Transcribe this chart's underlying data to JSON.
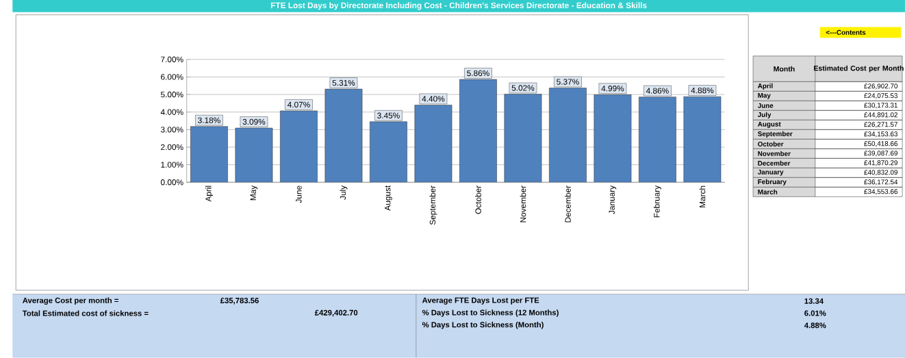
{
  "chart_data": {
    "type": "bar",
    "title": "FTE Lost Days by Directorate Including Cost - Children's Services Directorate - Education & Skills",
    "categories": [
      "April",
      "May",
      "June",
      "July",
      "August",
      "September",
      "October",
      "November",
      "December",
      "January",
      "February",
      "March"
    ],
    "values": [
      3.18,
      3.09,
      4.07,
      5.31,
      3.45,
      4.4,
      5.86,
      5.02,
      5.37,
      4.99,
      4.86,
      4.88
    ],
    "value_labels": [
      "3.18%",
      "3.09%",
      "4.07%",
      "5.31%",
      "3.45%",
      "4.40%",
      "5.86%",
      "5.02%",
      "5.37%",
      "4.99%",
      "4.86%",
      "4.88%"
    ],
    "color": "#4f81bd",
    "ylim": [
      0,
      7
    ],
    "yticks": [
      {
        "value": 0,
        "label": "0.00%"
      },
      {
        "value": 1,
        "label": "1.00%"
      },
      {
        "value": 2,
        "label": "2.00%"
      },
      {
        "value": 3,
        "label": "3.00%"
      },
      {
        "value": 4,
        "label": "4.00%"
      },
      {
        "value": 5,
        "label": "5.00%"
      },
      {
        "value": 6,
        "label": "6.00%"
      },
      {
        "value": 7,
        "label": "7.00%"
      }
    ],
    "grid": "y",
    "annotations": [
      "<---Contents",
      "Month",
      "Estimated Cost per Month",
      "£26,902.70",
      "£24,075.53",
      "£30,173.31",
      "£44,891.02",
      "£26,271.57",
      "£34,153.63",
      "£50,418.66",
      "£39,087.69",
      "£41,870.29",
      "£40,832.09",
      "£36,172.54",
      "£34,553.66",
      "Average Cost per month =",
      "£35,783.56",
      "Total Estimated cost of sickness =",
      "£429,402.70",
      "Average FTE Days Lost per FTE",
      "13.34",
      "% Days Lost to Sickness (12 Months)",
      "6.01%",
      "% Days Lost to Sickness (Month)",
      "4.88%"
    ]
  }
}
